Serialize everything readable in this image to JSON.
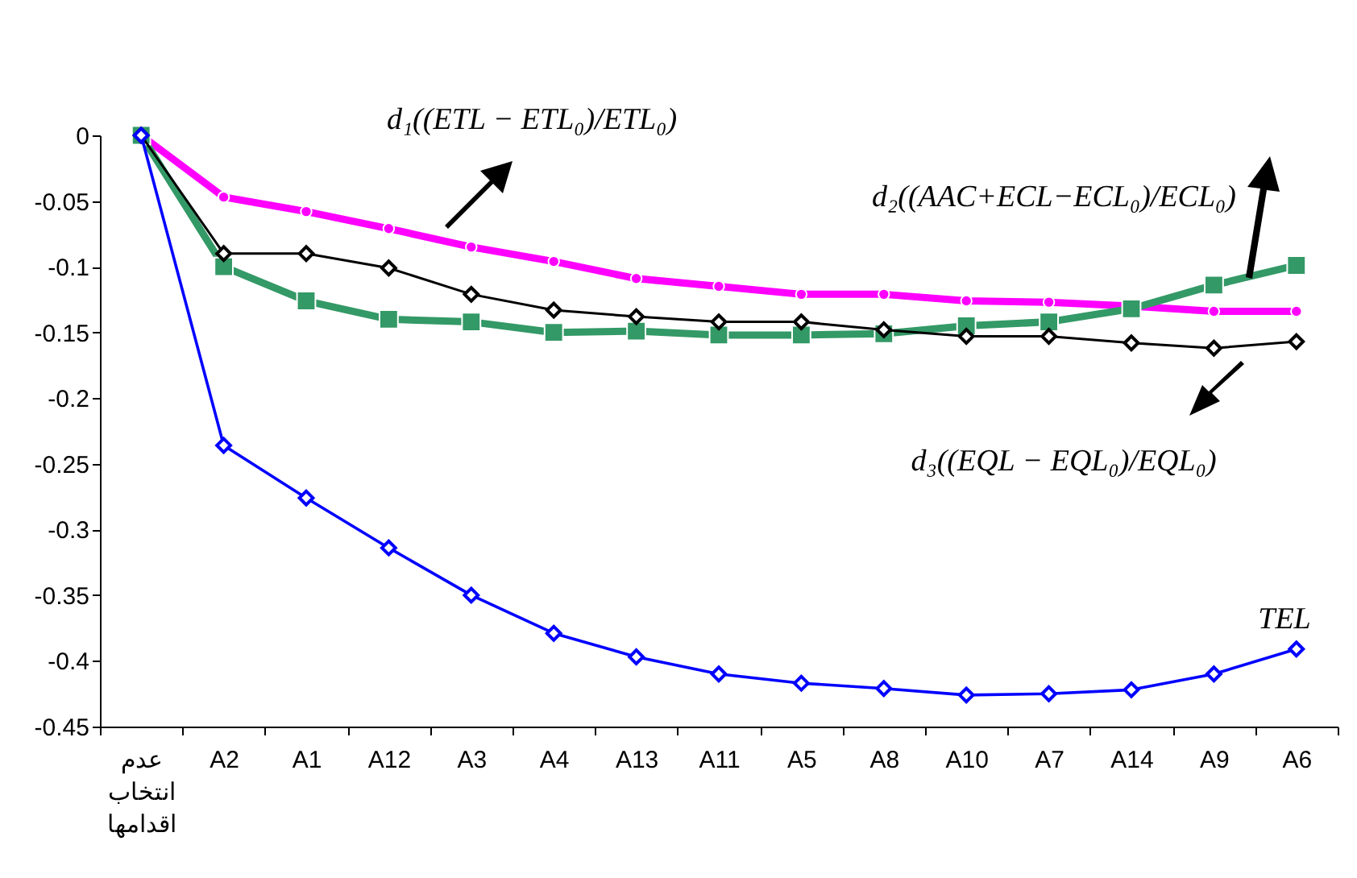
{
  "chart_data": {
    "type": "line",
    "categories": [
      "عدم انتخاب اقدامها",
      "A2",
      "A1",
      "A12",
      "A3",
      "A4",
      "A13",
      "A11",
      "A5",
      "A8",
      "A10",
      "A7",
      "A14",
      "A9",
      "A6"
    ],
    "series": [
      {
        "name": "d₁((ETL − ETL₀)/ETL₀)",
        "color": "#ff00ff",
        "marker": "circle",
        "values": [
          0,
          -0.047,
          -0.058,
          -0.071,
          -0.085,
          -0.096,
          -0.109,
          -0.115,
          -0.121,
          -0.121,
          -0.126,
          -0.127,
          -0.13,
          -0.134,
          -0.134
        ]
      },
      {
        "name": "d₂((AAC+ECL−ECL₀)/ECL₀)",
        "color": "#339966",
        "marker": "square",
        "values": [
          0,
          -0.1,
          -0.126,
          -0.14,
          -0.142,
          -0.15,
          -0.149,
          -0.152,
          -0.152,
          -0.151,
          -0.145,
          -0.142,
          -0.132,
          -0.114,
          -0.099
        ]
      },
      {
        "name": "d₃((EQL − EQL₀)/EQL₀)",
        "color": "#000000",
        "marker": "diamond",
        "values": [
          0,
          -0.09,
          -0.09,
          -0.101,
          -0.121,
          -0.133,
          -0.138,
          -0.142,
          -0.142,
          -0.148,
          -0.153,
          -0.153,
          -0.158,
          -0.162,
          -0.157
        ]
      },
      {
        "name": "TEL",
        "color": "#0000ff",
        "marker": "diamond",
        "values": [
          0,
          -0.236,
          -0.276,
          -0.314,
          -0.35,
          -0.379,
          -0.397,
          -0.41,
          -0.417,
          -0.421,
          -0.426,
          -0.425,
          -0.422,
          -0.41,
          -0.391
        ]
      }
    ],
    "ylim": [
      -0.45,
      0
    ],
    "yticks": [
      0,
      -0.05,
      -0.1,
      -0.15,
      -0.2,
      -0.25,
      -0.3,
      -0.35,
      -0.4,
      -0.45
    ]
  }
}
